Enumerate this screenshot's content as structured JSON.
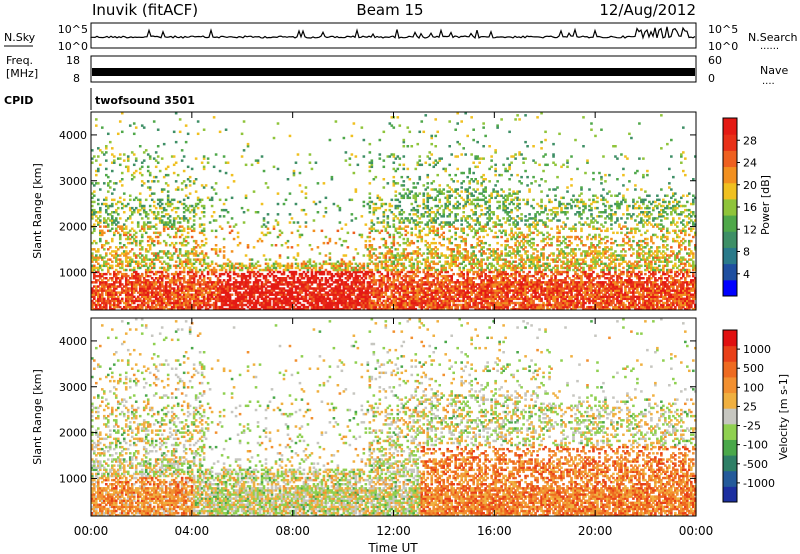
{
  "header": {
    "station": "Inuvik (fitACF)",
    "beam": "Beam 15",
    "date": "12/Aug/2012"
  },
  "aux_labels": {
    "nsky": "N.Sky",
    "nsearch": "N.Search",
    "freq_line1": "Freq.",
    "freq_line2": "[MHz]",
    "nave": "Nave",
    "cpid": "CPID",
    "cpid_value": "twofsound 3501",
    "dots": "......",
    "dots_short": "...."
  },
  "noise_ticks_left": [
    "10^5",
    "10^0"
  ],
  "noise_ticks_right": [
    "10^5",
    "10^0"
  ],
  "freq_ticks_left": [
    "18",
    "8"
  ],
  "freq_ticks_right": [
    "60",
    "0"
  ],
  "chart_data": [
    {
      "type": "heatmap",
      "parameter": "Power",
      "ylabel": "Slant Range [km]",
      "ylim": [
        180,
        4500
      ],
      "y_ticks": [
        "4000",
        "3000",
        "2000",
        "1000"
      ],
      "colorbar": {
        "label": "Power [dB]",
        "ticks": [
          "28",
          "24",
          "20",
          "16",
          "12",
          "8",
          "4"
        ],
        "colors": [
          "#0000ff",
          "#1f4fa0",
          "#2a7a8a",
          "#3e8f66",
          "#4fa84a",
          "#8fc43a",
          "#f0c020",
          "#f29020",
          "#ee6020",
          "#e83018",
          "#e41a14"
        ]
      }
    },
    {
      "type": "heatmap",
      "parameter": "Velocity",
      "ylabel": "Slant Range [km]",
      "ylim": [
        180,
        4500
      ],
      "y_ticks": [
        "4000",
        "3000",
        "2000",
        "1000"
      ],
      "colorbar": {
        "label": "Velocity [m s-1]",
        "ticks": [
          "1000",
          "500",
          "100",
          "25",
          "-25",
          "-100",
          "-500",
          "-1000"
        ],
        "colors": [
          "#1c2fa0",
          "#245a9a",
          "#2e7f66",
          "#4aa84a",
          "#8fd050",
          "#c6c6c0",
          "#f0b040",
          "#f29030",
          "#ee6a20",
          "#e84018",
          "#e01010"
        ]
      }
    }
  ],
  "x_axis": {
    "ticks": [
      "00:00",
      "04:00",
      "08:00",
      "12:00",
      "16:00",
      "20:00",
      "00:00"
    ],
    "label": "Time UT"
  }
}
